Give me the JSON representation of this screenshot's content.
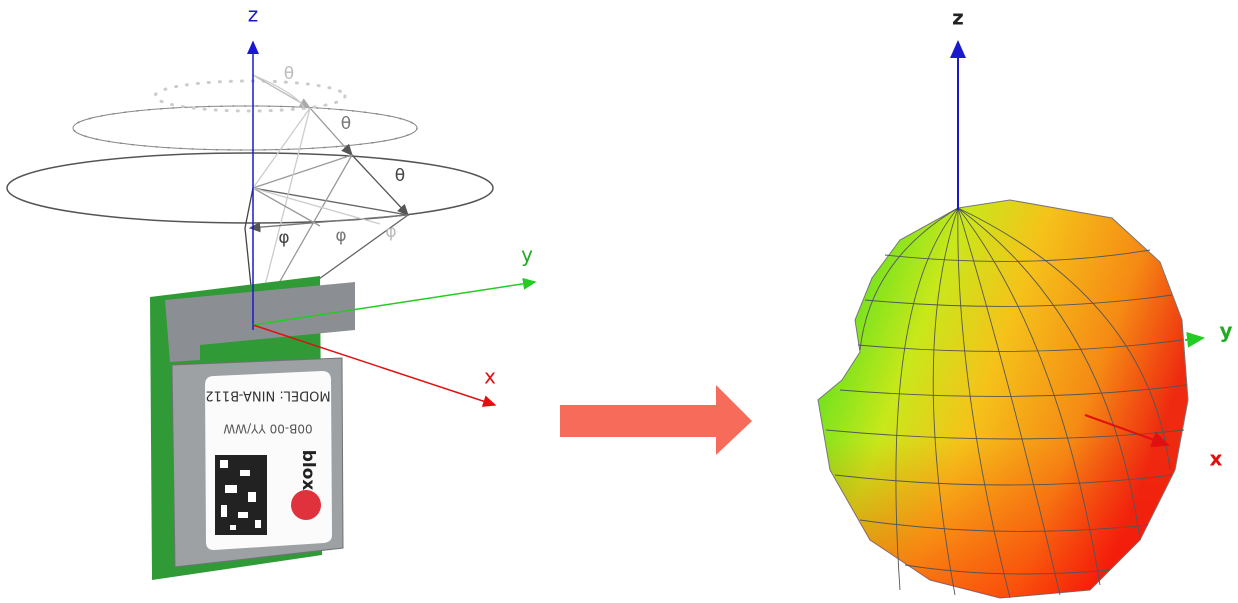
{
  "left": {
    "axes": {
      "z": "z",
      "y": "y",
      "x": "x"
    },
    "theta_labels": [
      "θ",
      "θ",
      "θ"
    ],
    "phi_labels": [
      "φ",
      "φ",
      "φ"
    ],
    "module": {
      "model": "MODEL: NINA-B112",
      "date": "00B-00 YY/WW",
      "brand": "blox"
    }
  },
  "right": {
    "axes": {
      "z": "z",
      "y": "y",
      "x": "x"
    }
  }
}
